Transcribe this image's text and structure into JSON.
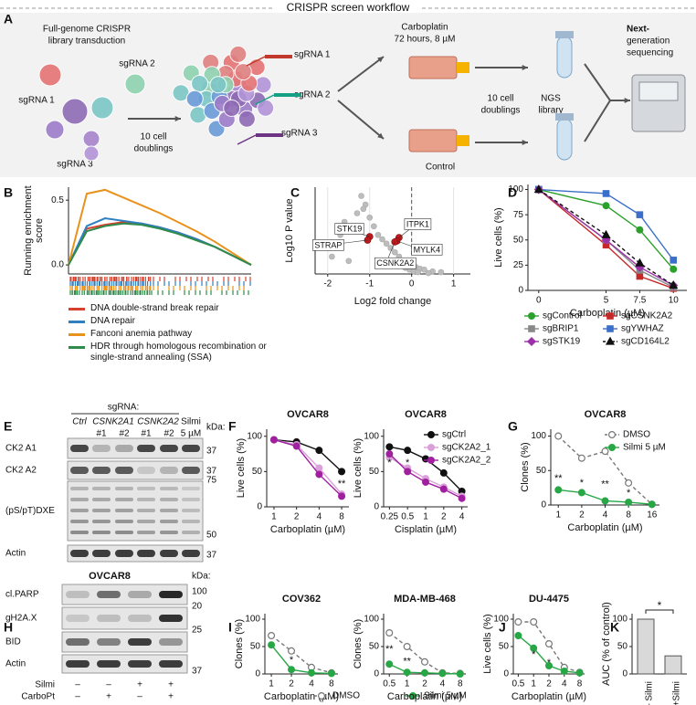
{
  "panel_labels": [
    "A",
    "B",
    "C",
    "D",
    "E",
    "F",
    "G",
    "H",
    "I",
    "J",
    "K"
  ],
  "workflow": {
    "title": "CRISPR screen workflow",
    "library": [
      "Full-genome CRISPR",
      "library transduction"
    ],
    "sgrnas": [
      "sgRNA 1",
      "sgRNA 2",
      "sgRNA 3"
    ],
    "doublings_1": [
      "10 cell",
      "doublings"
    ],
    "pool_sgrnas": [
      "sgRNA 1",
      "sgRNA 2",
      "sgRNA 3"
    ],
    "treatment": [
      "Carboplatin",
      "72 hours, 8 µM"
    ],
    "control": "Control",
    "doublings_2": [
      "10 cell",
      "doublings"
    ],
    "ngs": [
      "NGS",
      "library"
    ],
    "sequencing": [
      "Next-",
      "generation",
      "sequencing"
    ]
  },
  "blots": {
    "E": {
      "header": "sgRNA:",
      "lane_labels_top": [
        "Ctrl",
        "CSNK2A1",
        "CSNK2A2",
        "Silmi"
      ],
      "lane_labels_bottom": [
        "#1",
        "#2",
        "#1",
        "#2",
        "5 µM"
      ],
      "kda": "kDa:",
      "rows": [
        "CK2 A1",
        "CK2 A2",
        "(pS/pT)DXE",
        "Actin"
      ],
      "mw": [
        "37",
        "37",
        "75",
        "50",
        "37"
      ]
    },
    "H": {
      "title": "OVCAR8",
      "kda": "kDa:",
      "rows": [
        "cl.PARP",
        "gH2A.X",
        "BID",
        "Actin"
      ],
      "mw": [
        "100",
        "20",
        "25",
        "37"
      ],
      "treatments": [
        {
          "label": "Silmi",
          "signs": [
            "–",
            "–",
            "+",
            "+"
          ]
        },
        {
          "label": "CarboPt",
          "signs": [
            "–",
            "+",
            "–",
            "+"
          ]
        }
      ]
    }
  },
  "chart_data": [
    {
      "type": "line",
      "ylabel": [
        "Running enrichment",
        "score"
      ],
      "markers": false,
      "ylim": [
        -0.07,
        0.6
      ],
      "yticks": [
        {
          "value": 0,
          "label": "0.0"
        },
        {
          "value": 0.5,
          "label": "0.5"
        }
      ],
      "legend": "below",
      "series": [
        {
          "name": "DNA double-strand break repair",
          "color": "#d6402c",
          "values": [
            0,
            0.28,
            0.31,
            0.33,
            0.32,
            0.29,
            0.25,
            0.2,
            0.14,
            0.07,
            0
          ]
        },
        {
          "name": "DNA repair",
          "color": "#2f7fc1",
          "values": [
            0,
            0.3,
            0.36,
            0.34,
            0.32,
            0.29,
            0.25,
            0.2,
            0.14,
            0.07,
            0
          ]
        },
        {
          "name": "Fanconi anemia pathway",
          "color": "#e8921c",
          "values": [
            0,
            0.55,
            0.58,
            0.52,
            0.46,
            0.4,
            0.33,
            0.26,
            0.18,
            0.09,
            0
          ]
        },
        {
          "name": "HDR through homologous recombination or single-strand annealing (SSA)",
          "color": "#2e8b4a",
          "values": [
            0,
            0.26,
            0.3,
            0.32,
            0.31,
            0.28,
            0.24,
            0.19,
            0.14,
            0.07,
            0
          ]
        }
      ]
    },
    {
      "type": "scatter",
      "xlabel": "Log2 fold change",
      "ylabel": "Log10 P value",
      "grid": true,
      "vline": 0,
      "xlim": [
        -2.3,
        1.4
      ],
      "xticks": [
        -2,
        -1,
        0,
        1
      ],
      "ylim": [
        0,
        10
      ],
      "series": [
        {
          "color": "#bdbdbd",
          "x": [
            -2,
            -1.9,
            -1.7,
            -1.5,
            -1.4,
            -1.2,
            -1.1,
            -1.3,
            -1.0,
            -0.9,
            -0.8,
            -0.7,
            -0.6,
            -0.5,
            -0.4,
            -0.3,
            -0.2,
            -0.1,
            0.1,
            0.2,
            0.3,
            0.5,
            0.7,
            -1.6,
            -1.15,
            -0.05,
            0.05,
            0.15,
            -0.15,
            0.4
          ],
          "values": [
            3.5,
            2,
            4.5,
            1.5,
            5,
            9,
            8,
            7,
            6.5,
            5.5,
            4.5,
            4,
            3.5,
            3,
            2.5,
            2,
            1.5,
            1,
            0.8,
            0.6,
            0.5,
            0.3,
            0.2,
            6,
            7.5,
            0.5,
            0.3,
            0.2,
            0.7,
            0.1
          ]
        },
        {
          "color": "#c0181b",
          "x": [
            -1.0,
            -1.05,
            -0.3,
            -0.35,
            -0.4
          ],
          "values": [
            4.3,
            3.9,
            4.2,
            3.8,
            3.7
          ],
          "labels": [
            "STK19",
            "STRAP",
            "ITPK1",
            "MYLK4",
            "CSNK2A2"
          ]
        }
      ]
    },
    {
      "type": "line",
      "xlabel": "Carboplatin (µM)",
      "ylabel": "Live cells (%)",
      "x": [
        0,
        5,
        7.5,
        10
      ],
      "xlim": [
        -0.8,
        11
      ],
      "xticks": [
        0,
        5,
        7.5,
        10
      ],
      "ylim": [
        0,
        105
      ],
      "yticks": [
        0,
        25,
        50,
        75,
        100
      ],
      "legend": "below",
      "series": [
        {
          "name": "sgControl",
          "color": "#2ca02c",
          "marker": "circle",
          "values": [
            100,
            84,
            60,
            21
          ]
        },
        {
          "name": "sgCSNK2A2",
          "color": "#c62828",
          "marker": "square",
          "values": [
            100,
            45,
            14,
            2
          ]
        },
        {
          "name": "sgBRIP1",
          "color": "#888888",
          "marker": "square",
          "values": [
            100,
            50,
            20,
            3
          ]
        },
        {
          "name": "sgYWHAZ",
          "color": "#3b6fc9",
          "marker": "square",
          "values": [
            100,
            96,
            75,
            30
          ]
        },
        {
          "name": "sgSTK19",
          "color": "#9b30a8",
          "marker": "diamond",
          "values": [
            100,
            50,
            23,
            5
          ]
        },
        {
          "name": "sgCD164L2",
          "color": "#111111",
          "marker": "triangle",
          "dash": true,
          "values": [
            100,
            55,
            27,
            5
          ]
        }
      ]
    },
    {
      "type": "line",
      "title": "OVCAR8",
      "xlabel": "Carboplatin (µM)",
      "ylabel": "Live cells (%)",
      "xscale": "log",
      "x": [
        1,
        2,
        4,
        8
      ],
      "xlim": [
        0.8,
        10
      ],
      "xticks": [
        1,
        2,
        4,
        8
      ],
      "ylim": [
        0,
        110
      ],
      "yticks": [
        0,
        50,
        100
      ],
      "annotations": [
        "**"
      ],
      "series": [
        {
          "color": "#111111",
          "marker": "circle",
          "values": [
            95,
            92,
            80,
            50
          ]
        },
        {
          "color": "#d9a0d9",
          "marker": "circle",
          "values": [
            95,
            88,
            55,
            18
          ]
        },
        {
          "color": "#a020a0",
          "marker": "circle",
          "values": [
            95,
            86,
            46,
            15
          ]
        }
      ]
    },
    {
      "type": "line",
      "title": "OVCAR8",
      "xlabel": "Cisplatin (µM)",
      "ylabel": "Live cells (%)",
      "xscale": "log",
      "x": [
        0.25,
        0.5,
        1,
        2,
        4
      ],
      "xlim": [
        0.2,
        5
      ],
      "xticks": [
        0.25,
        0.5,
        1,
        2,
        4
      ],
      "ylim": [
        0,
        110
      ],
      "yticks": [
        0,
        50,
        100
      ],
      "annotations": [
        "*",
        "*"
      ],
      "legend": "upper right",
      "series": [
        {
          "name": "sgCtrl",
          "color": "#111111",
          "marker": "circle",
          "values": [
            85,
            80,
            68,
            48,
            22
          ]
        },
        {
          "name": "sgCK2A2_1",
          "color": "#d9a0d9",
          "marker": "circle",
          "values": [
            70,
            55,
            40,
            28,
            15
          ]
        },
        {
          "name": "sgCK2A2_2",
          "color": "#a020a0",
          "marker": "circle",
          "values": [
            75,
            50,
            35,
            25,
            12
          ]
        }
      ]
    },
    {
      "type": "line",
      "title": "OVCAR8",
      "xlabel": "Carboplatin (µM)",
      "ylabel": "Clones (%)",
      "xscale": "log",
      "x": [
        1,
        2,
        4,
        8,
        16
      ],
      "xlim": [
        0.8,
        20
      ],
      "xticks": [
        1,
        2,
        4,
        8,
        16
      ],
      "ylim": [
        0,
        110
      ],
      "yticks": [
        0,
        50,
        100
      ],
      "annotations": [
        "**",
        "*",
        "**",
        "*"
      ],
      "legend": "upper right",
      "series": [
        {
          "name": "DMSO",
          "color": "#777777",
          "marker": "circle",
          "open": true,
          "dash": true,
          "values": [
            100,
            68,
            78,
            32,
            1
          ]
        },
        {
          "name": "Silmi 5 µM",
          "color": "#27a745",
          "marker": "circle",
          "values": [
            22,
            18,
            6,
            4,
            1
          ]
        }
      ]
    },
    {
      "type": "line",
      "title": "COV362",
      "xlabel": "Carboplatin (µM)",
      "ylabel": "Clones (%)",
      "xscale": "log",
      "x": [
        1,
        2,
        4,
        8
      ],
      "xlim": [
        0.8,
        10
      ],
      "xticks": [
        1,
        2,
        4,
        8
      ],
      "ylim": [
        0,
        110
      ],
      "yticks": [
        0,
        50,
        100
      ],
      "annotations": [
        "*"
      ],
      "legend": "below",
      "series": [
        {
          "name": "DMSO",
          "color": "#777777",
          "marker": "circle",
          "open": true,
          "dash": true,
          "values": [
            70,
            42,
            12,
            2
          ]
        },
        {
          "name": "Silmi 5 µM",
          "color": "#27a745",
          "marker": "circle",
          "values": [
            53,
            8,
            2,
            1
          ]
        }
      ]
    },
    {
      "type": "line",
      "title": "MDA-MB-468",
      "xlabel": "Carboplatin (µM)",
      "ylabel": "Clones (%)",
      "xscale": "log",
      "x": [
        0.5,
        1,
        2,
        4,
        8
      ],
      "xlim": [
        0.4,
        10
      ],
      "xticks": [
        0.5,
        1,
        2,
        4,
        8
      ],
      "ylim": [
        0,
        110
      ],
      "yticks": [
        0,
        50,
        100
      ],
      "annotations": [
        "**",
        "**"
      ],
      "series": [
        {
          "color": "#777777",
          "marker": "circle",
          "open": true,
          "dash": true,
          "values": [
            75,
            50,
            22,
            2,
            1
          ]
        },
        {
          "color": "#27a745",
          "marker": "circle",
          "values": [
            18,
            3,
            2,
            1,
            0
          ]
        }
      ]
    },
    {
      "type": "line",
      "title": "DU-4475",
      "xlabel": "Carboplatin (µM)",
      "ylabel": "Live cells (%)",
      "xscale": "log",
      "x": [
        0.5,
        1,
        2,
        4,
        8
      ],
      "xlim": [
        0.4,
        10
      ],
      "xticks": [
        0.5,
        1,
        2,
        4,
        8
      ],
      "ylim": [
        0,
        110
      ],
      "yticks": [
        0,
        50,
        100
      ],
      "annotations": [
        "*",
        "*"
      ],
      "series": [
        {
          "color": "#777777",
          "marker": "circle",
          "open": true,
          "dash": true,
          "values": [
            95,
            95,
            55,
            12,
            3
          ]
        },
        {
          "color": "#27a745",
          "marker": "circle",
          "values": [
            70,
            47,
            15,
            5,
            2
          ]
        }
      ]
    },
    {
      "type": "bar",
      "ylabel": "AUC (% of control)",
      "categories": [
        "– Silmi",
        "+Silmi"
      ],
      "values": [
        100,
        33
      ],
      "color": "#d9d9d9",
      "ylim": [
        0,
        110
      ],
      "yticks": [
        0,
        50,
        100
      ],
      "annotations": [
        "*"
      ]
    }
  ]
}
